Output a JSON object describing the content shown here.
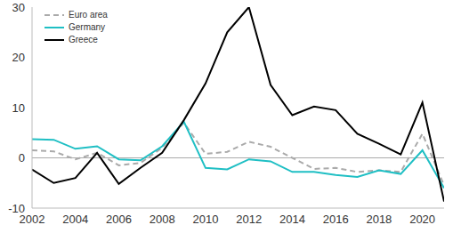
{
  "chart_data": {
    "type": "line",
    "x": [
      2002,
      2003,
      2004,
      2005,
      2006,
      2007,
      2008,
      2009,
      2010,
      2011,
      2012,
      2013,
      2014,
      2015,
      2016,
      2017,
      2018,
      2019,
      2020,
      2021
    ],
    "series": [
      {
        "name": "Euro area",
        "color": "#aaaaaa",
        "line_style": "dashed",
        "values": [
          1.5,
          1.3,
          -0.3,
          1.0,
          -1.5,
          -1.0,
          2.0,
          7.0,
          0.8,
          1.2,
          3.2,
          2.2,
          0.0,
          -2.2,
          -2.0,
          -2.8,
          -2.5,
          -2.8,
          4.8,
          -5.5
        ]
      },
      {
        "name": "Germany",
        "color": "#1fbfc4",
        "line_style": "solid",
        "values": [
          3.7,
          3.6,
          1.8,
          2.3,
          -0.3,
          -0.5,
          2.3,
          7.2,
          -2.0,
          -2.3,
          -0.3,
          -0.7,
          -2.8,
          -2.8,
          -3.4,
          -3.8,
          -2.5,
          -3.2,
          1.5,
          -6.0
        ]
      },
      {
        "name": "Greece",
        "color": "#000000",
        "line_style": "solid",
        "values": [
          -2.3,
          -5.0,
          -4.0,
          1.0,
          -5.2,
          -2.0,
          1.0,
          7.5,
          14.8,
          25.0,
          30.0,
          14.5,
          8.5,
          10.2,
          9.5,
          4.8,
          2.8,
          0.7,
          11.0,
          -8.7
        ]
      }
    ],
    "xlim": [
      2002,
      2021
    ],
    "xticks": [
      2002,
      2004,
      2006,
      2008,
      2010,
      2012,
      2014,
      2016,
      2018,
      2020
    ],
    "ylim": [
      -10,
      30
    ],
    "yticks": [
      -10,
      0,
      10,
      20,
      30
    ],
    "grid": false,
    "legend": "top-left"
  }
}
